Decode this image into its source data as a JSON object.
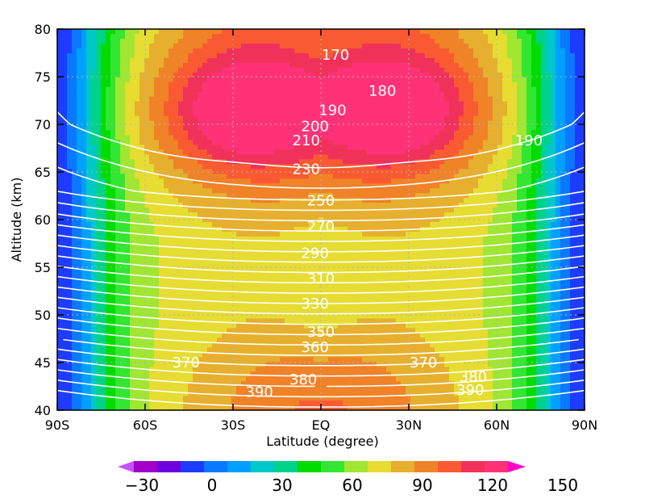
{
  "chart_data": {
    "type": "heatmap",
    "title": "",
    "xlabel": "Latitude (degree)",
    "ylabel": "Altitude (km)",
    "x_ticks": [
      "90S",
      "60S",
      "30S",
      "EQ",
      "30N",
      "60N",
      "90N"
    ],
    "x_tick_values": [
      -90,
      -60,
      -30,
      0,
      30,
      60,
      90
    ],
    "y_ticks": [
      "40",
      "45",
      "50",
      "55",
      "60",
      "65",
      "70",
      "75",
      "80"
    ],
    "y_tick_values": [
      40,
      45,
      50,
      55,
      60,
      65,
      70,
      75,
      80
    ],
    "xlim": [
      -90,
      90
    ],
    "ylim": [
      40,
      80
    ],
    "grid": true,
    "colorbar": {
      "levels": [
        -30,
        -20,
        -10,
        0,
        10,
        20,
        30,
        40,
        50,
        60,
        70,
        80,
        90,
        100,
        110,
        120,
        130,
        140,
        150
      ],
      "labels": [
        "−30",
        "0",
        "30",
        "60",
        "90",
        "120",
        "150"
      ],
      "label_values": [
        -30,
        0,
        30,
        60,
        90,
        120,
        150
      ],
      "colors": [
        "#a000c8",
        "#6e00dc",
        "#1e3cff",
        "#0a78ff",
        "#00a0ff",
        "#00c8c8",
        "#00d28c",
        "#00dc00",
        "#32e632",
        "#a0e632",
        "#e6dc32",
        "#e6af2d",
        "#f08228",
        "#fa5a32",
        "#f0325a",
        "#ff3278"
      ],
      "extend": "both",
      "min_arrow_color": "#c850ff",
      "max_arrow_color": "#ff00c8"
    },
    "filled_field": {
      "description": "shaded field",
      "x": [
        -90,
        -80,
        -70,
        -60,
        -50,
        -40,
        -30,
        -20,
        -10,
        0,
        10,
        20,
        30,
        40,
        50,
        60,
        70,
        80,
        90
      ],
      "y": [
        40,
        42.5,
        45,
        47.5,
        50,
        52.5,
        55,
        57.5,
        60,
        62.5,
        65,
        67.5,
        70,
        72.5,
        75,
        77.5,
        80
      ]
    },
    "contour_levels": [
      170,
      180,
      190,
      200,
      210,
      220,
      230,
      240,
      250,
      260,
      270,
      280,
      290,
      300,
      310,
      320,
      330,
      340,
      350,
      360,
      370,
      380,
      390
    ],
    "contour_labels": [
      {
        "text": "170",
        "x": 5,
        "y": 77.3
      },
      {
        "text": "180",
        "x": 21,
        "y": 73.5
      },
      {
        "text": "190",
        "x": 4,
        "y": 71.5
      },
      {
        "text": "190",
        "x": 71,
        "y": 68.3
      },
      {
        "text": "200",
        "x": -2,
        "y": 69.8
      },
      {
        "text": "210",
        "x": -5,
        "y": 68.3
      },
      {
        "text": "230",
        "x": -5,
        "y": 65.3
      },
      {
        "text": "250",
        "x": 0,
        "y": 62.0
      },
      {
        "text": "270",
        "x": 0,
        "y": 59.3
      },
      {
        "text": "290",
        "x": -2,
        "y": 56.5
      },
      {
        "text": "310",
        "x": 0,
        "y": 53.8
      },
      {
        "text": "330",
        "x": -2,
        "y": 51.2
      },
      {
        "text": "350",
        "x": 0,
        "y": 48.2
      },
      {
        "text": "360",
        "x": -2,
        "y": 46.6
      },
      {
        "text": "370",
        "x": -46,
        "y": 45.0
      },
      {
        "text": "370",
        "x": 35,
        "y": 45.0
      },
      {
        "text": "380",
        "x": -6,
        "y": 43.2
      },
      {
        "text": "380",
        "x": 52,
        "y": 43.5
      },
      {
        "text": "390",
        "x": -21,
        "y": 41.9
      },
      {
        "text": "390",
        "x": 51,
        "y": 42.1
      }
    ]
  }
}
